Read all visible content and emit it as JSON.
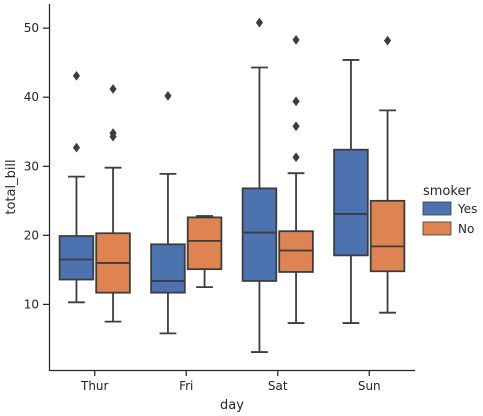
{
  "chart_data": {
    "type": "box",
    "xlabel": "day",
    "ylabel": "total_bill",
    "categories": [
      "Thur",
      "Fri",
      "Sat",
      "Sun"
    ],
    "ylim": [
      0.5,
      53.5
    ],
    "yticks": [
      10,
      20,
      30,
      40,
      50
    ],
    "grid": false,
    "legend": {
      "title": "smoker",
      "placement": "right"
    },
    "series": [
      {
        "name": "Yes",
        "color": "#4c72b0",
        "boxes": [
          {
            "whislo": 10.3,
            "q1": 13.6,
            "med": 16.5,
            "q3": 19.9,
            "whishi": 28.5,
            "fliers": [
              32.7,
              43.1
            ]
          },
          {
            "whislo": 5.8,
            "q1": 11.7,
            "med": 13.4,
            "q3": 18.7,
            "whishi": 28.9,
            "fliers": [
              40.2
            ]
          },
          {
            "whislo": 3.1,
            "q1": 13.4,
            "med": 20.4,
            "q3": 26.8,
            "whishi": 44.3,
            "fliers": [
              50.8
            ]
          },
          {
            "whislo": 7.3,
            "q1": 17.1,
            "med": 23.1,
            "q3": 32.4,
            "whishi": 45.4,
            "fliers": []
          }
        ]
      },
      {
        "name": "No",
        "color": "#dd8452",
        "boxes": [
          {
            "whislo": 7.5,
            "q1": 11.7,
            "med": 16.0,
            "q3": 20.3,
            "whishi": 29.8,
            "fliers": [
              34.3,
              34.8,
              41.2
            ]
          },
          {
            "whislo": 12.5,
            "q1": 15.1,
            "med": 19.2,
            "q3": 22.6,
            "whishi": 22.8,
            "fliers": []
          },
          {
            "whislo": 7.3,
            "q1": 14.7,
            "med": 17.8,
            "q3": 20.6,
            "whishi": 29.0,
            "fliers": [
              31.3,
              35.8,
              39.4,
              48.3
            ]
          },
          {
            "whislo": 8.8,
            "q1": 14.8,
            "med": 18.4,
            "q3": 25.0,
            "whishi": 38.1,
            "fliers": [
              48.2
            ]
          }
        ]
      }
    ]
  }
}
